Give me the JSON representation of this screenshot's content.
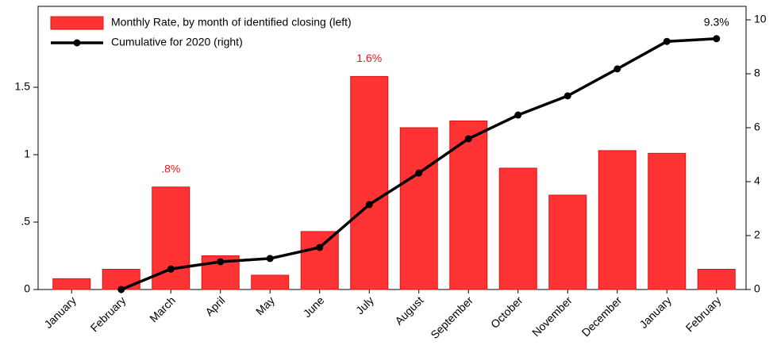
{
  "chart_data": {
    "type": "bar-line",
    "categories": [
      "January",
      "February",
      "March",
      "April",
      "May",
      "June",
      "July",
      "August",
      "September",
      "October",
      "November",
      "December",
      "January",
      "February"
    ],
    "series": [
      {
        "name": "Monthly Rate, by month of identified closing (left)",
        "color": "#ff3333",
        "type": "bar",
        "values": [
          0.08,
          0.15,
          0.76,
          0.25,
          0.106,
          0.43,
          1.58,
          1.2,
          1.25,
          0.9,
          0.7,
          1.03,
          1.01,
          0.15
        ],
        "value_labels": [
          null,
          null,
          ".8%",
          null,
          null,
          null,
          "1.6%",
          null,
          null,
          null,
          null,
          null,
          null,
          null
        ]
      },
      {
        "name": "Cumulative for 2020 (right)",
        "color": "#000000",
        "type": "line",
        "axis": "y2",
        "values": [
          null,
          0,
          0.76,
          1.03,
          1.15,
          1.56,
          3.15,
          4.32,
          5.59,
          6.47,
          7.18,
          8.18,
          9.2,
          9.3
        ],
        "value_labels": [
          null,
          null,
          null,
          null,
          null,
          null,
          null,
          null,
          null,
          null,
          null,
          null,
          null,
          "9.3%"
        ]
      }
    ],
    "ylim": [
      0,
      2.1
    ],
    "yticks": [
      0,
      {
        "value": 0.5,
        "label": ".5"
      },
      1,
      1.5
    ],
    "y2lim": [
      0,
      10.5
    ],
    "y2ticks": [
      0,
      2,
      4,
      6,
      8,
      10
    ],
    "legend": "top-left"
  }
}
